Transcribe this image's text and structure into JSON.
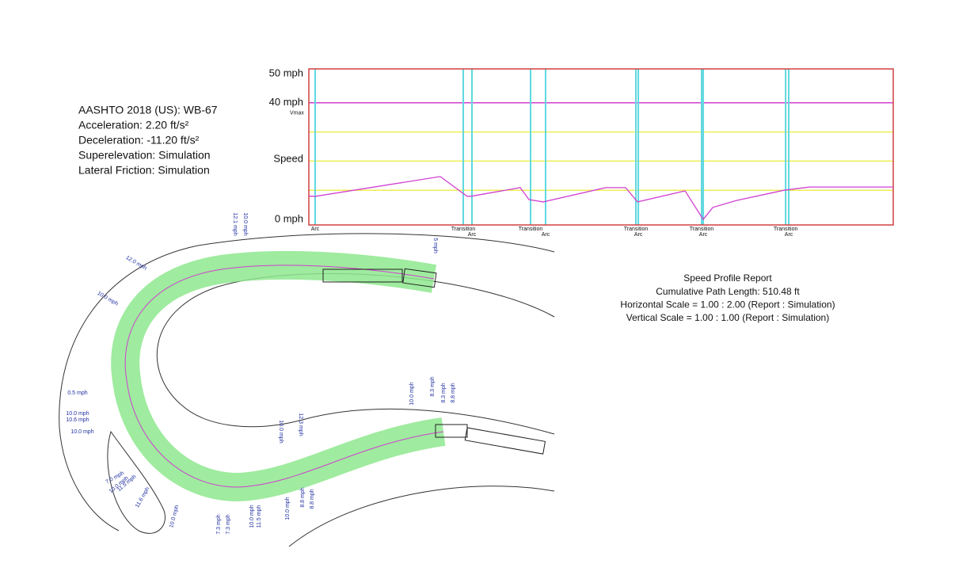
{
  "vehicle_info": [
    "AASHTO 2018 (US): WB-67",
    "Acceleration: 2.20 ft/s²",
    "Deceleration: -11.20 ft/s²",
    "Superelevation: Simulation",
    "Lateral Friction: Simulation"
  ],
  "chart_data": {
    "type": "line",
    "y_title": "Speed",
    "x": [
      0,
      5.5,
      114.8,
      138.3,
      142.5,
      184.7,
      192.3,
      204.7,
      259.4,
      276.7,
      287.1,
      328.6,
      344.5,
      352.8,
      373.5,
      415,
      437.2,
      510.48
    ],
    "values": [
      8,
      7.9,
      14.7,
      7.9,
      8,
      10.9,
      6.8,
      6,
      10.9,
      10.9,
      6,
      9.8,
      0,
      4.1,
      6.5,
      10,
      11.1,
      11.1
    ],
    "color": "#d040d0",
    "xlim": [
      0,
      510.48
    ],
    "ylim": [
      0,
      50
    ],
    "yticks": [
      {
        "value": 50,
        "label": "50 mph"
      },
      {
        "value": 40,
        "label": "40 mph"
      },
      {
        "value": 0,
        "label": "0 mph"
      }
    ],
    "vmax": {
      "value": 40,
      "label": "Vmax",
      "color": "#d040d0"
    },
    "grid_values": [
      10,
      20,
      30
    ],
    "grid_color": "#eeee55",
    "boundary_color": "#5fd8e0",
    "frame_color": "#d04040",
    "boundaries": [
      {
        "x": 5.5,
        "label": "Arc"
      },
      {
        "x": 134.9,
        "label": "Transition"
      },
      {
        "x": 142.5,
        "label": "Arc"
      },
      {
        "x": 193.7,
        "label": "Transition"
      },
      {
        "x": 206.8,
        "label": "Arc"
      },
      {
        "x": 285.7,
        "label": "Transition"
      },
      {
        "x": 287.8,
        "label": "Arc"
      },
      {
        "x": 343.1,
        "label": "Transition"
      },
      {
        "x": 344.5,
        "label": "Arc"
      },
      {
        "x": 416.5,
        "label": "Transition"
      },
      {
        "x": 419.2,
        "label": "Arc"
      }
    ]
  },
  "report": {
    "title": "Speed Profile Report",
    "lines": [
      "Cumulative Path Length: 510.48 ft",
      "Horizontal Scale = 1.00 : 2.00 (Report : Simulation)",
      "Vertical Scale = 1.00 : 1.00 (Report : Simulation)"
    ]
  },
  "path_speed_labels": [
    "12.1 mph",
    "10.0 mph",
    "12.0 mph",
    "10.0 mph",
    "5 mph",
    "0.5 mph",
    "10.0 mph",
    "10.6 mph",
    "10.0 mph",
    "7.0 mph",
    "10.0 mph",
    "11.5 mph",
    "11.6 mph",
    "10.0 mph",
    "7.3 mph",
    "7.3 mph",
    "10.0 mph",
    "11.5 mph",
    "10.0 mph",
    "8.8 mph",
    "8.8 mph",
    "10.0 mph",
    "12.3 mph",
    "10.0 mph",
    "8.3 mph",
    "8.3 mph",
    "8.8 mph"
  ]
}
